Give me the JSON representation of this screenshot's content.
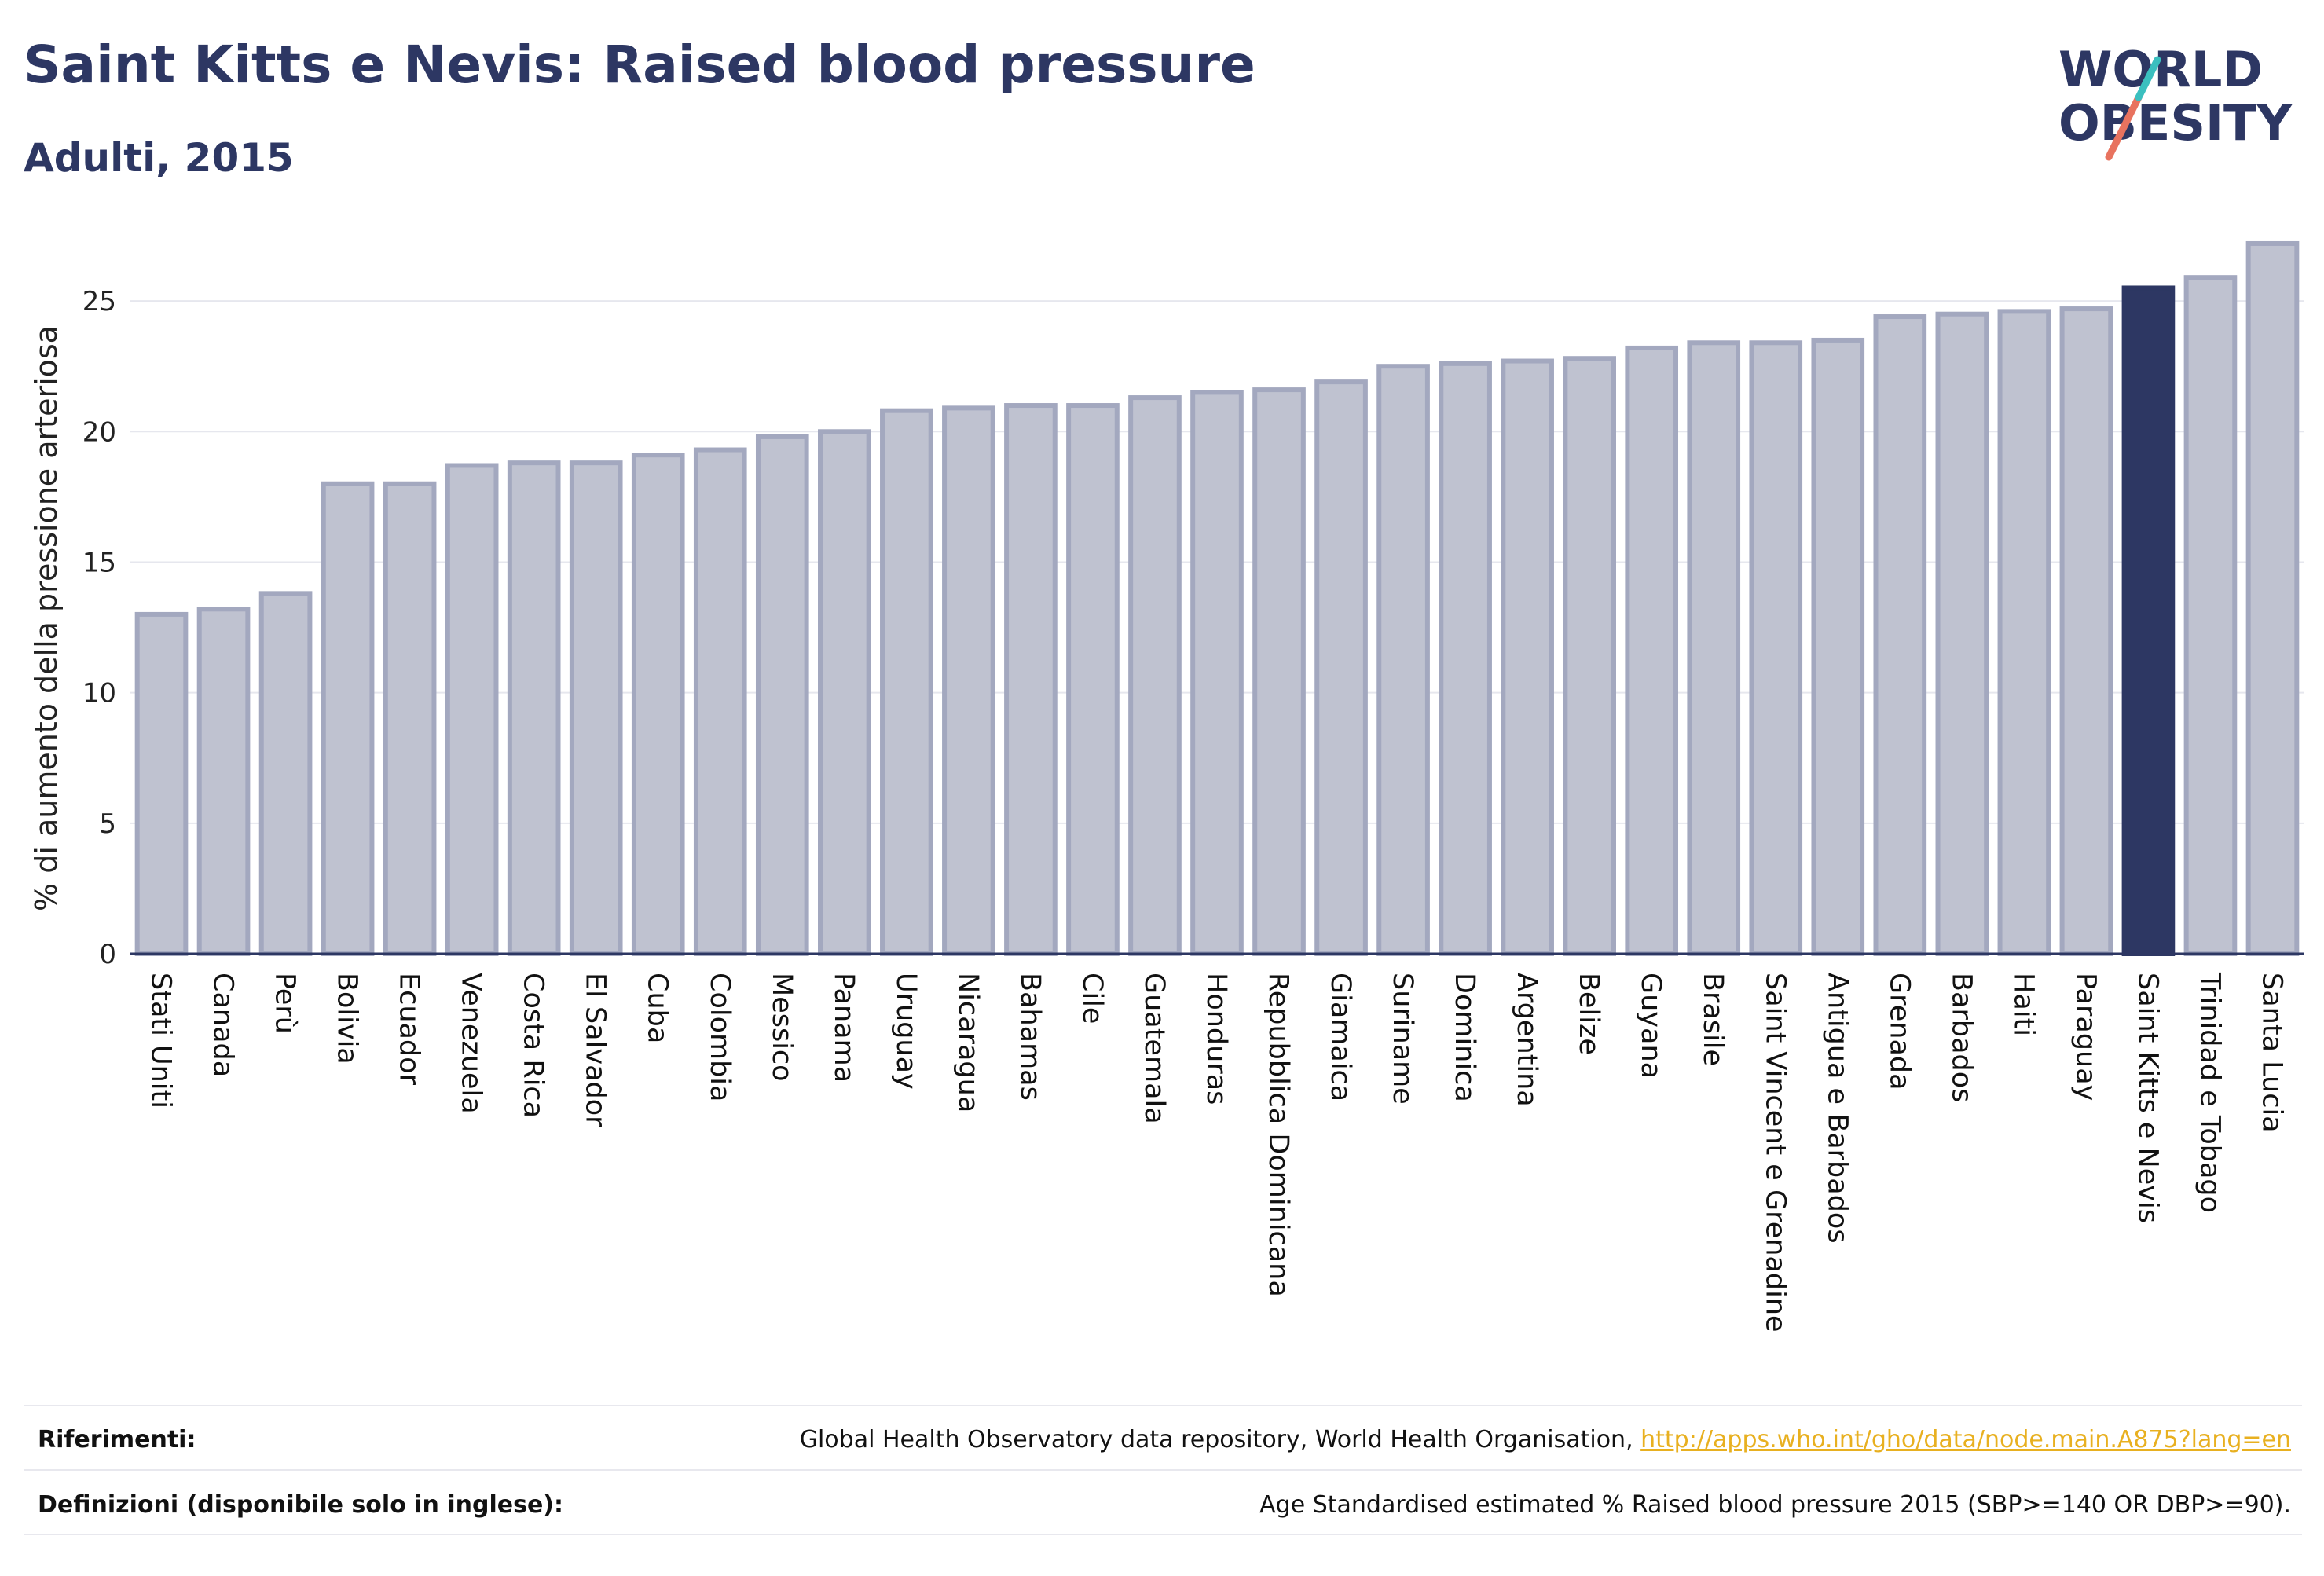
{
  "header": {
    "title": "Saint Kitts e Nevis: Raised blood pressure",
    "subtitle": "Adulti, 2015"
  },
  "logo": {
    "line1": "WORLD",
    "line2": "OBESITY",
    "name": "world-obesity-logo"
  },
  "colors": {
    "bar_fill": "#bfc2d0",
    "bar_stroke": "#a3a8bf",
    "highlight": "#2d3763",
    "grid": "#e6e7ee",
    "axis": "#2d3763",
    "link": "#e8b020"
  },
  "chart_data": {
    "type": "bar",
    "ylabel": "% di aumento della pressione arteriosa",
    "xlabel": "",
    "ylim": [
      0,
      27.5
    ],
    "yticks": [
      0,
      5,
      10,
      15,
      20,
      25
    ],
    "grid": true,
    "highlight": "Saint Kitts e Nevis",
    "categories": [
      "Stati Uniti",
      "Canada",
      "Perù",
      "Bolivia",
      "Ecuador",
      "Venezuela",
      "Costa Rica",
      "El Salvador",
      "Cuba",
      "Colombia",
      "Messico",
      "Panama",
      "Uruguay",
      "Nicaragua",
      "Bahamas",
      "Cile",
      "Guatemala",
      "Honduras",
      "Repubblica Dominicana",
      "Giamaica",
      "Suriname",
      "Dominica",
      "Argentina",
      "Belize",
      "Guyana",
      "Brasile",
      "Saint Vincent e Grenadine",
      "Antigua e Barbados",
      "Grenada",
      "Barbados",
      "Haiti",
      "Paraguay",
      "Saint Kitts e Nevis",
      "Trinidad e Tobago",
      "Santa Lucia"
    ],
    "values": [
      13.0,
      13.2,
      13.8,
      18.0,
      18.0,
      18.7,
      18.8,
      18.8,
      19.1,
      19.3,
      19.8,
      20.0,
      20.8,
      20.9,
      21.0,
      21.0,
      21.3,
      21.5,
      21.6,
      21.9,
      22.5,
      22.6,
      22.7,
      22.8,
      23.2,
      23.4,
      23.4,
      23.5,
      24.4,
      24.5,
      24.6,
      24.7,
      25.5,
      25.9,
      27.2
    ]
  },
  "footer": {
    "references_label": "Riferimenti:",
    "references_text": "Global Health Observatory data repository, World Health Organisation, ",
    "references_link": "http://apps.who.int/gho/data/node.main.A875?lang=en",
    "definitions_label": "Definizioni (disponibile solo in inglese):",
    "definitions_text": "Age Standardised estimated % Raised blood pressure 2015 (SBP>=140 OR DBP>=90)."
  }
}
